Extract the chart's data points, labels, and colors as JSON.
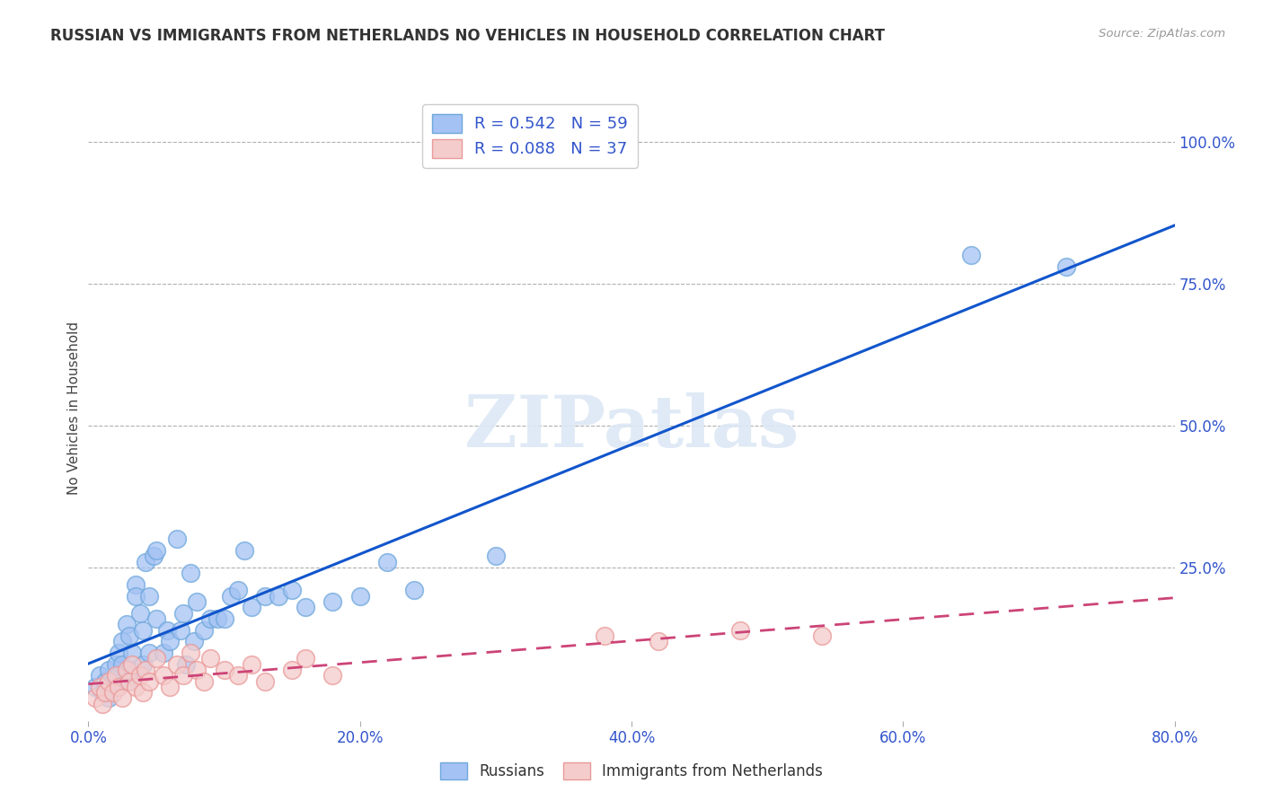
{
  "title": "RUSSIAN VS IMMIGRANTS FROM NETHERLANDS NO VEHICLES IN HOUSEHOLD CORRELATION CHART",
  "source": "Source: ZipAtlas.com",
  "ylabel": "No Vehicles in Household",
  "xlim": [
    0.0,
    0.8
  ],
  "ylim": [
    -0.02,
    1.08
  ],
  "xtick_labels": [
    "0.0%",
    "",
    "20.0%",
    "",
    "40.0%",
    "",
    "60.0%",
    "",
    "80.0%"
  ],
  "xtick_vals": [
    0.0,
    0.1,
    0.2,
    0.3,
    0.4,
    0.5,
    0.6,
    0.7,
    0.8
  ],
  "ytick_labels": [
    "25.0%",
    "50.0%",
    "75.0%",
    "100.0%"
  ],
  "ytick_vals": [
    0.25,
    0.5,
    0.75,
    1.0
  ],
  "russian_color": "#a4c2f4",
  "russian_edge": "#6fa8dc",
  "netherlands_color": "#f4cccc",
  "netherlands_edge": "#ea9999",
  "trendline_russian_color": "#1155cc",
  "trendline_netherlands_color": "#cc4477",
  "R_russian": 0.542,
  "N_russian": 59,
  "R_netherlands": 0.088,
  "N_netherlands": 37,
  "watermark": "ZIPatlas",
  "background_color": "#ffffff",
  "grid_color": "#b0b0b0",
  "russian_x": [
    0.005,
    0.008,
    0.01,
    0.012,
    0.015,
    0.015,
    0.018,
    0.02,
    0.02,
    0.022,
    0.022,
    0.025,
    0.025,
    0.028,
    0.028,
    0.03,
    0.03,
    0.032,
    0.032,
    0.035,
    0.035,
    0.038,
    0.04,
    0.04,
    0.042,
    0.045,
    0.045,
    0.048,
    0.05,
    0.05,
    0.055,
    0.058,
    0.06,
    0.065,
    0.068,
    0.07,
    0.072,
    0.075,
    0.078,
    0.08,
    0.085,
    0.09,
    0.095,
    0.1,
    0.105,
    0.11,
    0.115,
    0.12,
    0.13,
    0.14,
    0.15,
    0.16,
    0.18,
    0.2,
    0.22,
    0.24,
    0.3,
    0.65,
    0.72
  ],
  "russian_y": [
    0.04,
    0.06,
    0.03,
    0.05,
    0.02,
    0.07,
    0.05,
    0.04,
    0.08,
    0.06,
    0.1,
    0.12,
    0.08,
    0.15,
    0.05,
    0.07,
    0.13,
    0.1,
    0.06,
    0.22,
    0.2,
    0.17,
    0.08,
    0.14,
    0.26,
    0.1,
    0.2,
    0.27,
    0.28,
    0.16,
    0.1,
    0.14,
    0.12,
    0.3,
    0.14,
    0.17,
    0.08,
    0.24,
    0.12,
    0.19,
    0.14,
    0.16,
    0.16,
    0.16,
    0.2,
    0.21,
    0.28,
    0.18,
    0.2,
    0.2,
    0.21,
    0.18,
    0.19,
    0.2,
    0.26,
    0.21,
    0.27,
    0.8,
    0.78
  ],
  "netherlands_x": [
    0.005,
    0.008,
    0.01,
    0.012,
    0.015,
    0.018,
    0.02,
    0.022,
    0.025,
    0.028,
    0.03,
    0.032,
    0.035,
    0.038,
    0.04,
    0.042,
    0.045,
    0.05,
    0.055,
    0.06,
    0.065,
    0.07,
    0.075,
    0.08,
    0.085,
    0.09,
    0.1,
    0.11,
    0.12,
    0.13,
    0.15,
    0.16,
    0.18,
    0.38,
    0.42,
    0.48,
    0.54
  ],
  "netherlands_y": [
    0.02,
    0.04,
    0.01,
    0.03,
    0.05,
    0.03,
    0.06,
    0.04,
    0.02,
    0.07,
    0.05,
    0.08,
    0.04,
    0.06,
    0.03,
    0.07,
    0.05,
    0.09,
    0.06,
    0.04,
    0.08,
    0.06,
    0.1,
    0.07,
    0.05,
    0.09,
    0.07,
    0.06,
    0.08,
    0.05,
    0.07,
    0.09,
    0.06,
    0.13,
    0.12,
    0.14,
    0.13
  ]
}
